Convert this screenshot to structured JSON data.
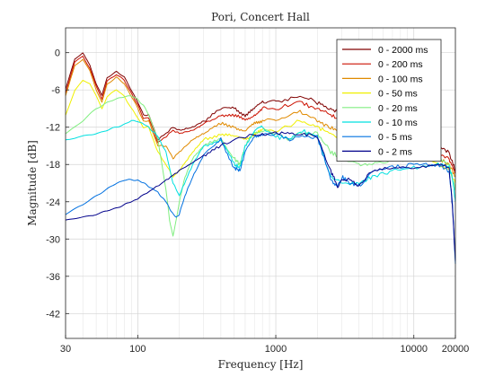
{
  "chart_data": {
    "type": "line",
    "title": "Pori, Concert Hall",
    "xlabel": "Frequency [Hz]",
    "ylabel": "Magnitude [dB]",
    "xscale": "log",
    "xlim": [
      30,
      20000
    ],
    "ylim": [
      -46,
      4
    ],
    "xticks": [
      30,
      100,
      1000,
      10000,
      20000
    ],
    "xtick_labels": [
      "30",
      "100",
      "1000",
      "10000",
      "20000"
    ],
    "yticks": [
      0,
      -6,
      -12,
      -18,
      -24,
      -30,
      -36,
      -42
    ],
    "ytick_labels": [
      "0",
      "-6",
      "-12",
      "-18",
      "-24",
      "-30",
      "-36",
      "-42"
    ],
    "grid": true,
    "minor_grid": true,
    "legend_position": "top-right",
    "series": [
      {
        "name": "0 - 2000 ms",
        "color": "#800000",
        "x": [
          30,
          35,
          40,
          45,
          50,
          55,
          60,
          70,
          80,
          90,
          100,
          110,
          120,
          140,
          160,
          180,
          200,
          250,
          300,
          400,
          500,
          600,
          700,
          800,
          1000,
          1500,
          2000,
          2500,
          3000,
          4000,
          5000,
          7000,
          10000,
          15000,
          18000,
          20000
        ],
        "y": [
          -6,
          -1,
          0,
          -2,
          -5,
          -7,
          -4,
          -3,
          -4,
          -6,
          -8,
          -10,
          -10,
          -14,
          -13,
          -12,
          -12.5,
          -12,
          -11,
          -9,
          -9,
          -10,
          -9,
          -8,
          -8,
          -7,
          -8,
          -9,
          -10,
          -10,
          -11,
          -12,
          -13,
          -15,
          -16,
          -19
        ]
      },
      {
        "name": "0 - 200 ms",
        "color": "#cc1100",
        "x": [
          30,
          35,
          40,
          45,
          50,
          55,
          60,
          70,
          80,
          90,
          100,
          110,
          120,
          140,
          160,
          180,
          200,
          250,
          300,
          400,
          500,
          600,
          700,
          800,
          1000,
          1500,
          2000,
          2500,
          3000,
          4000,
          5000,
          7000,
          10000,
          15000,
          18000,
          20000
        ],
        "y": [
          -6.5,
          -1.5,
          -0.5,
          -2.5,
          -5.5,
          -7.5,
          -4.5,
          -3.5,
          -4.5,
          -6.5,
          -8.5,
          -10.5,
          -10.5,
          -14.5,
          -13.5,
          -12.5,
          -13,
          -12.5,
          -11.5,
          -10,
          -10,
          -11,
          -10,
          -9,
          -9,
          -8,
          -9,
          -10,
          -11,
          -11,
          -12,
          -13,
          -14,
          -16,
          -17,
          -19.5
        ]
      },
      {
        "name": "0 - 100 ms",
        "color": "#e08a00",
        "x": [
          30,
          35,
          40,
          45,
          50,
          55,
          60,
          70,
          80,
          90,
          100,
          110,
          120,
          140,
          160,
          180,
          200,
          250,
          300,
          400,
          500,
          600,
          700,
          800,
          1000,
          1500,
          2000,
          2500,
          3000,
          4000,
          5000,
          7000,
          10000,
          15000,
          18000,
          20000
        ],
        "y": [
          -7,
          -2,
          -1,
          -3,
          -6,
          -8,
          -5,
          -4,
          -5,
          -7,
          -9,
          -11,
          -11,
          -15,
          -15,
          -17,
          -16,
          -14,
          -13,
          -11.5,
          -12,
          -12.5,
          -11.5,
          -11,
          -11,
          -9.5,
          -11,
          -12,
          -13,
          -12.5,
          -13,
          -14,
          -15,
          -17,
          -18,
          -20
        ]
      },
      {
        "name": "0 - 50 ms",
        "color": "#f0f000",
        "x": [
          30,
          35,
          40,
          45,
          50,
          55,
          60,
          70,
          80,
          90,
          100,
          110,
          120,
          140,
          160,
          180,
          200,
          250,
          300,
          400,
          500,
          600,
          700,
          800,
          1000,
          1500,
          2000,
          2500,
          3000,
          4000,
          5000,
          7000,
          10000,
          15000,
          18000,
          20000
        ],
        "y": [
          -10,
          -6,
          -4.5,
          -5,
          -7,
          -9,
          -7,
          -6,
          -7,
          -9,
          -10.5,
          -12,
          -12,
          -16,
          -18,
          -20,
          -19,
          -16,
          -14,
          -13,
          -13.5,
          -14,
          -13,
          -12.5,
          -12.5,
          -11,
          -12,
          -13,
          -14,
          -13.5,
          -14,
          -15,
          -16,
          -18,
          -19,
          -21
        ]
      },
      {
        "name": "0 - 20 ms",
        "color": "#80ee80",
        "x": [
          30,
          40,
          50,
          60,
          70,
          80,
          90,
          100,
          110,
          120,
          140,
          160,
          170,
          180,
          190,
          200,
          220,
          250,
          300,
          400,
          500,
          550,
          600,
          700,
          800,
          1000,
          1300,
          1500,
          2000,
          2500,
          3000,
          4000,
          5000,
          7000,
          10000,
          15000,
          18000,
          19000,
          20000
        ],
        "y": [
          -13,
          -11,
          -9,
          -8,
          -7.5,
          -7,
          -7,
          -7.5,
          -8.5,
          -10,
          -14,
          -22,
          -27,
          -29.5,
          -27,
          -24,
          -20,
          -17,
          -15,
          -14,
          -17,
          -18,
          -15,
          -13,
          -12.5,
          -13,
          -14,
          -13,
          -13,
          -16,
          -17,
          -18,
          -18,
          -17.5,
          -17,
          -17,
          -18,
          -20,
          -22
        ]
      },
      {
        "name": "0 - 10 ms",
        "color": "#00e0e0",
        "x": [
          30,
          40,
          50,
          60,
          70,
          80,
          90,
          100,
          110,
          120,
          140,
          160,
          180,
          200,
          250,
          300,
          400,
          500,
          550,
          600,
          700,
          800,
          1000,
          1300,
          1500,
          2000,
          2500,
          3000,
          4000,
          5000,
          7000,
          10000,
          15000,
          18000,
          19000,
          20000
        ],
        "y": [
          -14,
          -13.5,
          -13,
          -12.5,
          -12,
          -11.5,
          -11,
          -11,
          -11.5,
          -12,
          -13.5,
          -16,
          -21,
          -23,
          -18,
          -15,
          -14,
          -18,
          -18.5,
          -15,
          -12.5,
          -12,
          -13.5,
          -14,
          -12.5,
          -13.5,
          -20,
          -21,
          -21,
          -20,
          -19,
          -18.5,
          -18,
          -18.5,
          -20,
          -24
        ]
      },
      {
        "name": "0 - 5 ms",
        "color": "#0070e0",
        "x": [
          30,
          40,
          50,
          60,
          70,
          80,
          90,
          100,
          110,
          120,
          140,
          160,
          180,
          190,
          200,
          220,
          250,
          300,
          400,
          500,
          550,
          600,
          700,
          800,
          1000,
          1300,
          1500,
          2000,
          2500,
          2800,
          3000,
          3500,
          4000,
          5000,
          7000,
          10000,
          15000,
          18000,
          19000,
          20000
        ],
        "y": [
          -26,
          -24.5,
          -23,
          -22,
          -21,
          -20.5,
          -20.5,
          -20.5,
          -21,
          -21.5,
          -22.5,
          -24,
          -26,
          -26.5,
          -26,
          -23,
          -20,
          -16.5,
          -14,
          -18.5,
          -19,
          -16,
          -13.5,
          -13,
          -13,
          -14,
          -13.5,
          -13.5,
          -20.5,
          -21.5,
          -20,
          -21,
          -21.5,
          -19,
          -18.5,
          -18,
          -18,
          -19,
          -24,
          -34
        ]
      },
      {
        "name": "0 - 2 ms",
        "color": "#00008b",
        "x": [
          30,
          40,
          50,
          60,
          80,
          100,
          150,
          200,
          300,
          400,
          600,
          800,
          1000,
          1300,
          1500,
          2000,
          2500,
          2800,
          3000,
          3500,
          4000,
          5000,
          7000,
          10000,
          15000,
          18000,
          19000,
          20000
        ],
        "y": [
          -27,
          -26.5,
          -26,
          -25.5,
          -24.5,
          -23.5,
          -21,
          -19,
          -16.5,
          -15,
          -13.5,
          -13,
          -13,
          -13,
          -13,
          -13.5,
          -19,
          -21.5,
          -20.5,
          -20.5,
          -21.5,
          -19,
          -18.5,
          -18.5,
          -18,
          -18.5,
          -24.5,
          -33.5
        ]
      }
    ]
  }
}
